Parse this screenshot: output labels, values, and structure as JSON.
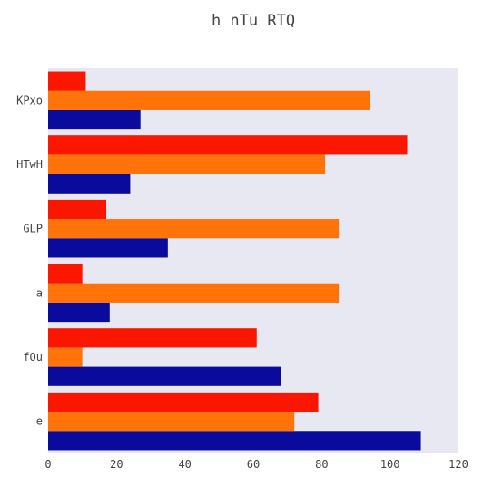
{
  "chart_data": {
    "type": "bar",
    "orientation": "horizontal",
    "title": "h nTu RTQ",
    "xlabel": "",
    "ylabel": "",
    "categories": [
      "e",
      "fOu",
      "a",
      "GLP",
      "HTwH",
      "KPxo"
    ],
    "series": [
      {
        "values": [
          109,
          68,
          18,
          35,
          24,
          27
        ],
        "color": "#0a0a9c"
      },
      {
        "values": [
          72,
          10,
          85,
          85,
          81,
          94
        ],
        "color": "#ff7308"
      },
      {
        "values": [
          79,
          61,
          10,
          17,
          105,
          11
        ],
        "color": "#fb1600"
      }
    ],
    "xlim": [
      0,
      120
    ],
    "xticks": [
      "0",
      "20",
      "40",
      "60",
      "80",
      "100",
      "120"
    ],
    "grid": false,
    "legend": "none",
    "background_color": "#e8e8f3"
  }
}
